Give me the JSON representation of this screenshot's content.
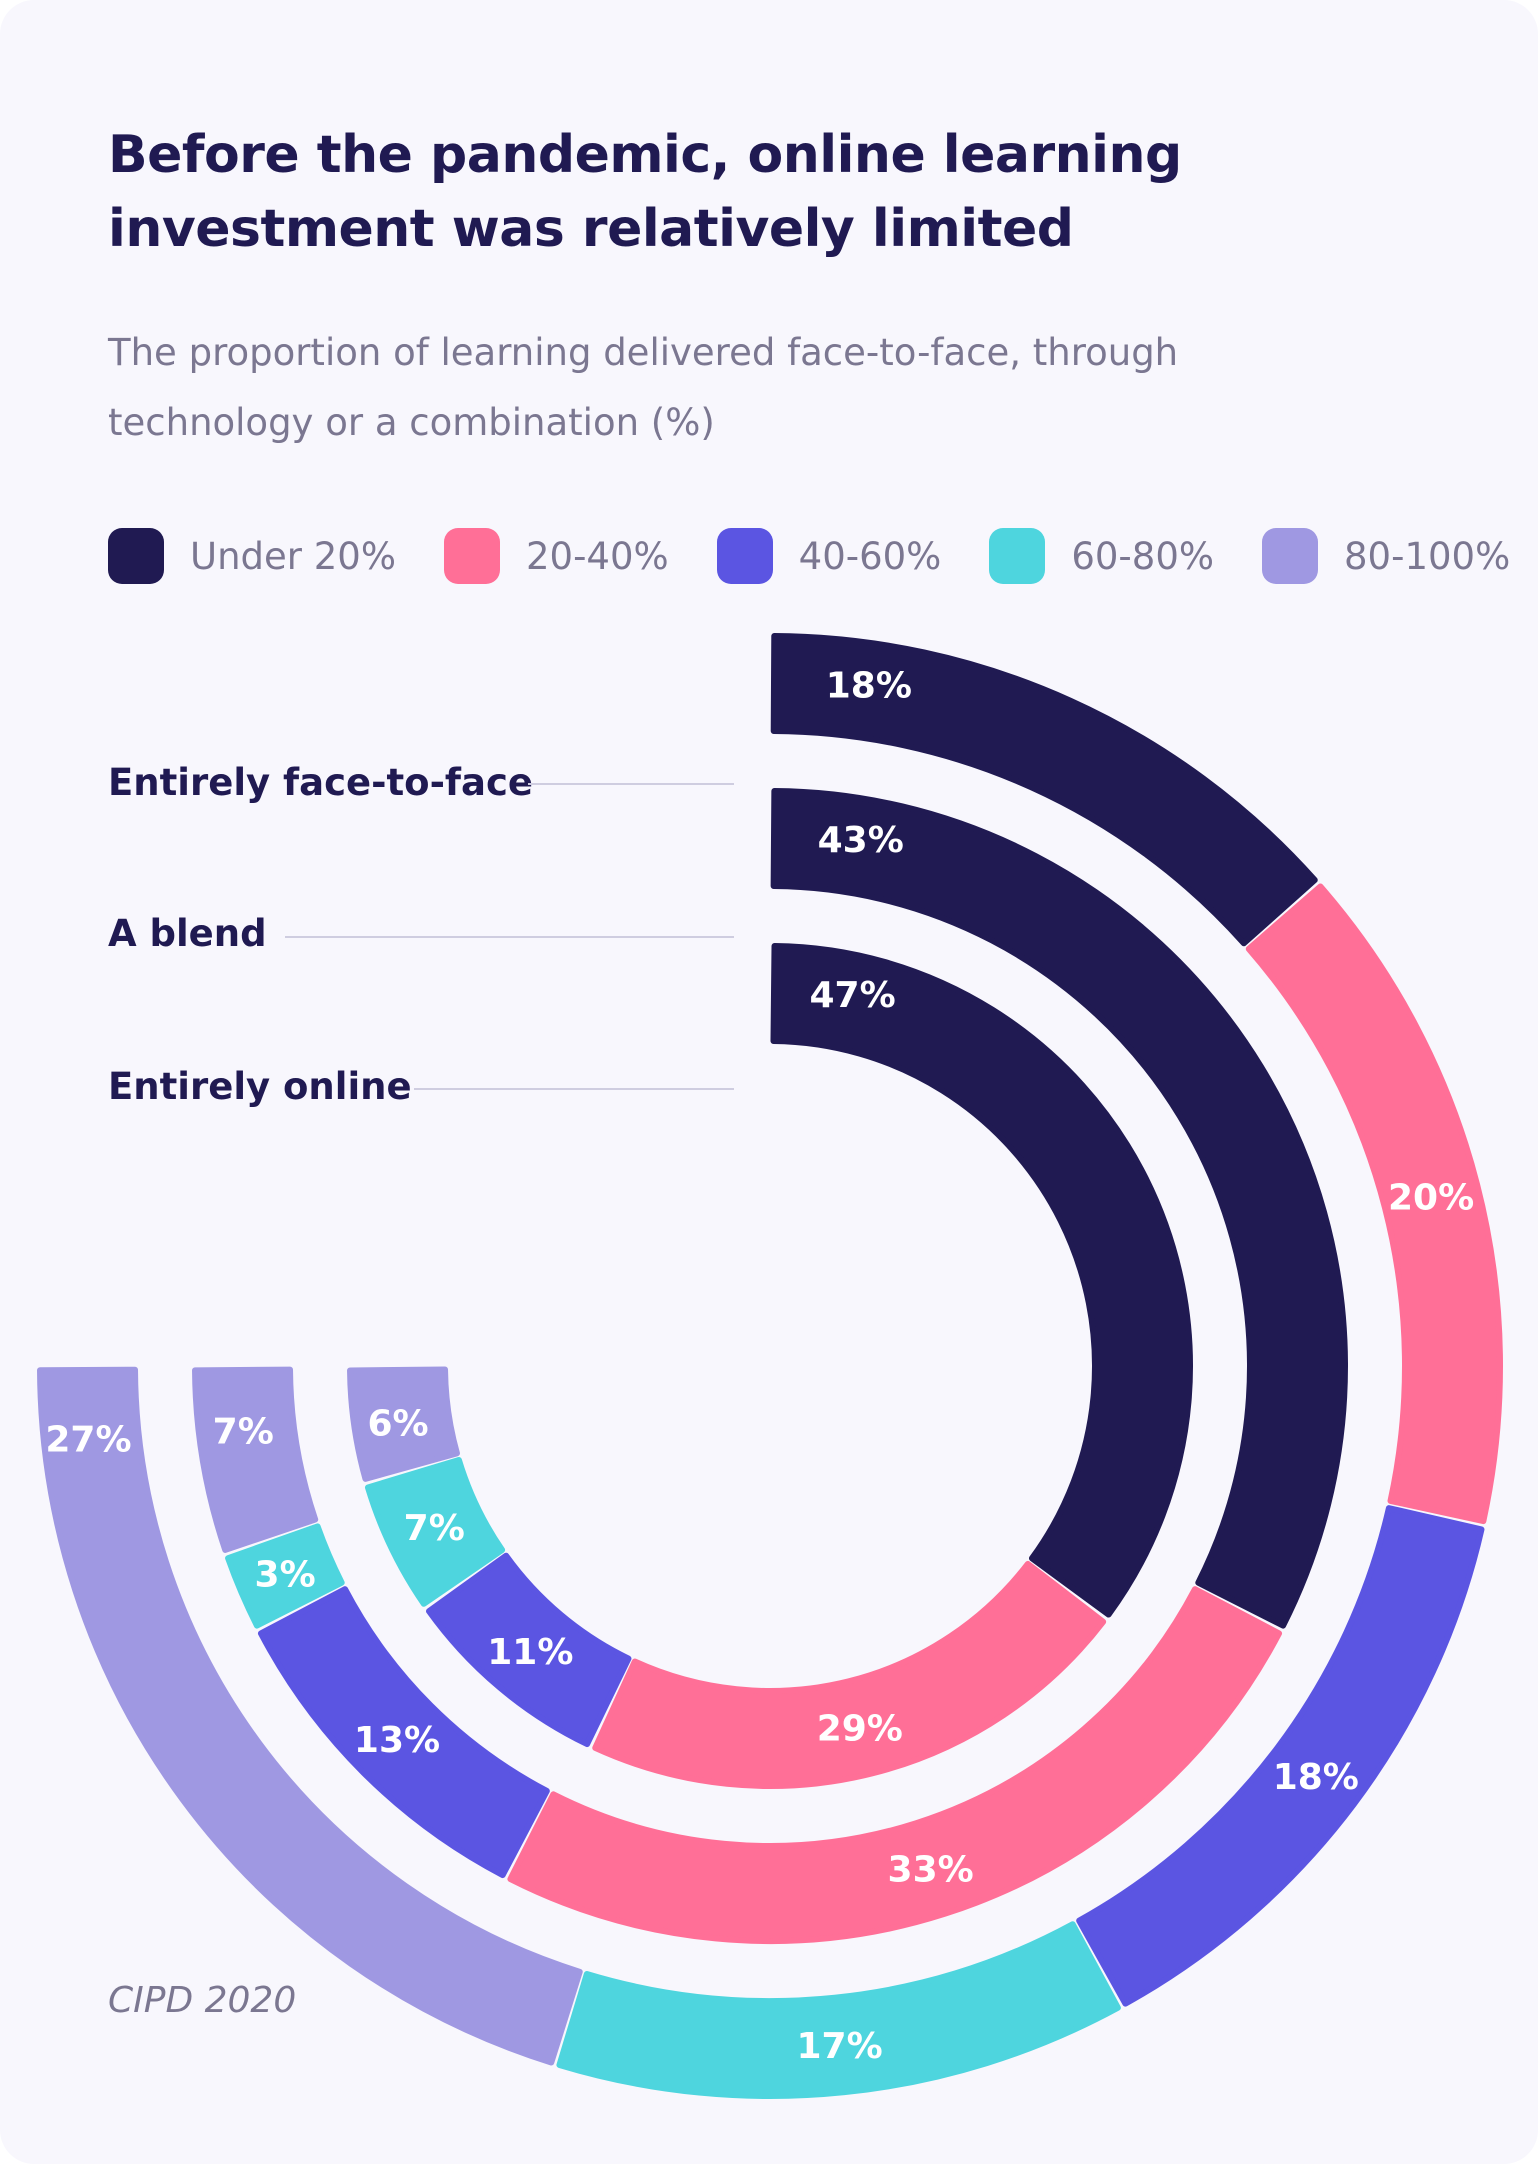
{
  "title": "Before the pandemic, online learning investment was relatively limited",
  "subtitle": "The proportion of learning delivered face-to-face, through technology or a combination (%)",
  "source": "CIPD 2020",
  "legend": [
    {
      "label": "Under 20%",
      "color": "#201a52"
    },
    {
      "label": "20-40%",
      "color": "#ff6f97"
    },
    {
      "label": "40-60%",
      "color": "#5b55e2"
    },
    {
      "label": "60-80%",
      "color": "#4ed5de"
    },
    {
      "label": "80-100%",
      "color": "#9f98e2"
    }
  ],
  "chart_data": {
    "type": "radial-bar",
    "categories": [
      "Under 20%",
      "20-40%",
      "40-60%",
      "60-80%",
      "80-100%"
    ],
    "series": [
      {
        "name": "Entirely face-to-face",
        "values": [
          18,
          20,
          18,
          17,
          27
        ]
      },
      {
        "name": "A blend",
        "values": [
          43,
          33,
          13,
          3,
          7
        ]
      },
      {
        "name": "Entirely online",
        "values": [
          47,
          29,
          11,
          7,
          6
        ]
      }
    ],
    "colors": [
      "#201a52",
      "#ff6f97",
      "#5b55e2",
      "#4ed5de",
      "#9f98e2"
    ]
  }
}
